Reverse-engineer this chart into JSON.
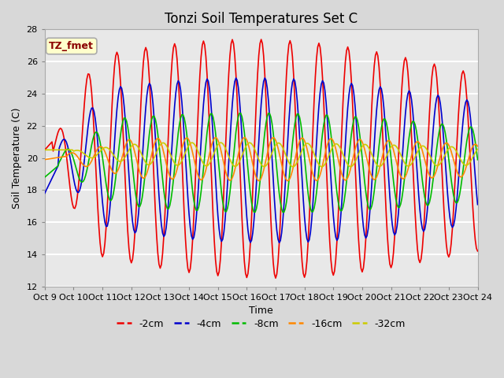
{
  "title": "Tonzi Soil Temperatures Set C",
  "xlabel": "Time",
  "ylabel": "Soil Temperature (C)",
  "ylim": [
    12,
    28
  ],
  "xlim": [
    0,
    15
  ],
  "annotation": "TZ_fmet",
  "annotation_box_color": "#ffffcc",
  "annotation_text_color": "#8b0000",
  "annotation_border_color": "#aaaaaa",
  "fig_bg_color": "#d8d8d8",
  "plot_bg_color": "#e8e8e8",
  "grid_color": "#ffffff",
  "line_colors": [
    "#ee0000",
    "#0000cc",
    "#00bb00",
    "#ff8800",
    "#cccc00"
  ],
  "line_labels": [
    "-2cm",
    "-4cm",
    "-8cm",
    "-16cm",
    "-32cm"
  ],
  "x_tick_labels": [
    "Oct 9",
    "Oct 10",
    "Oct 11",
    "Oct 12",
    "Oct 13",
    "Oct 14",
    "Oct 15",
    "Oct 16",
    "Oct 17",
    "Oct 18",
    "Oct 19",
    "Oct 20",
    "Oct 21",
    "Oct 22",
    "Oct 23",
    "Oct 24"
  ],
  "title_fontsize": 12,
  "axis_fontsize": 9,
  "tick_fontsize": 8,
  "legend_fontsize": 9
}
